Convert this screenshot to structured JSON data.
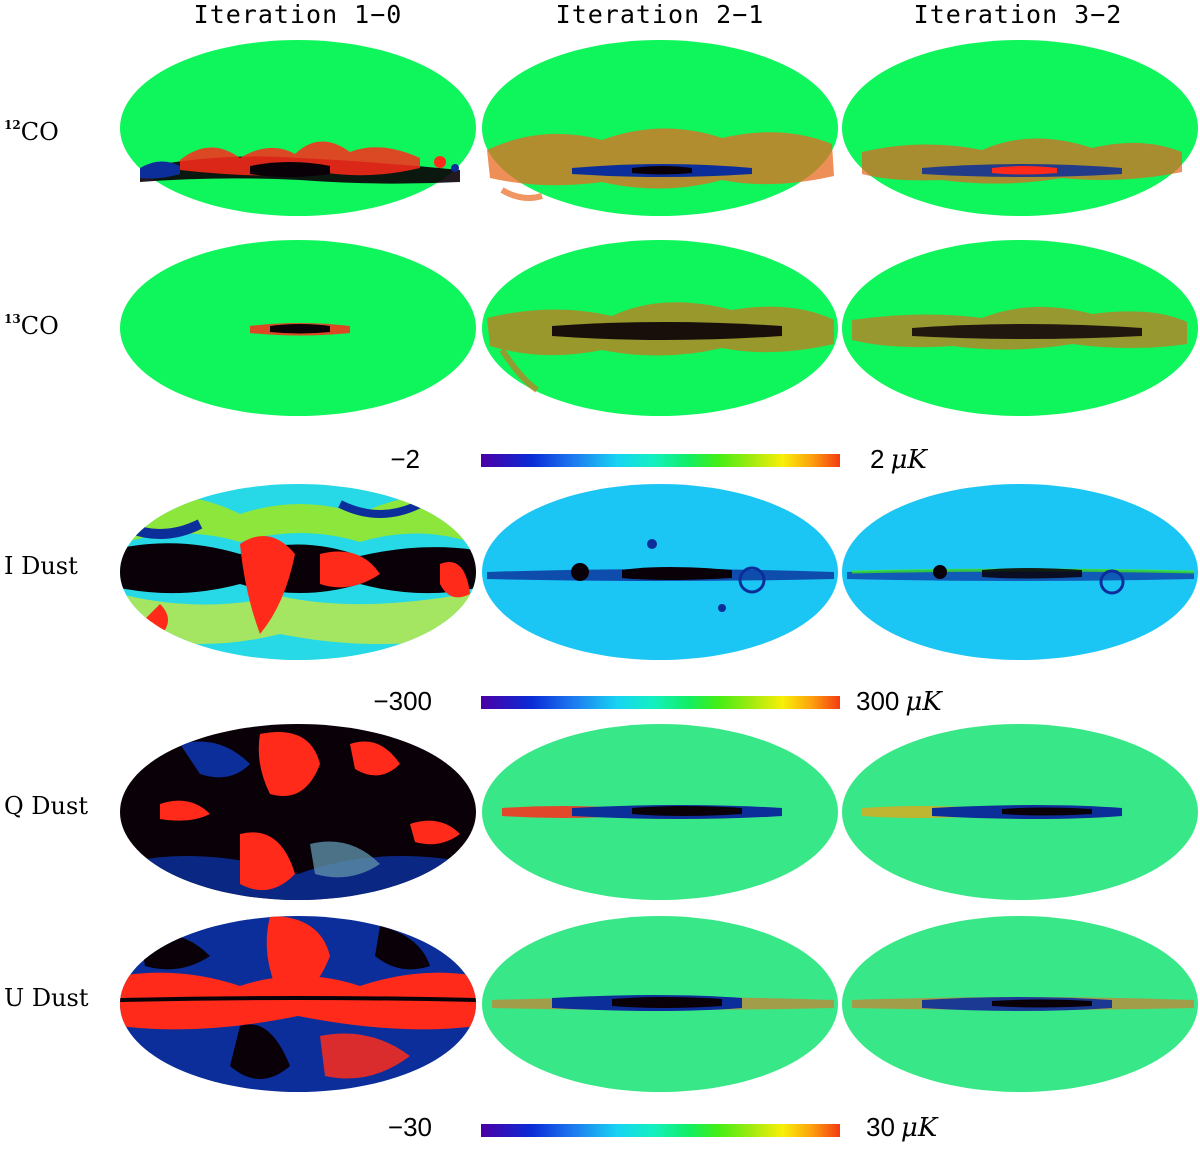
{
  "columns": [
    "Iteration 1−0",
    "Iteration 2−1",
    "Iteration 3−2"
  ],
  "rows": {
    "co12": {
      "sup": "12",
      "base": "CO"
    },
    "co13": {
      "sup": "13",
      "base": "CO"
    },
    "idust": "I Dust",
    "qdust": "Q Dust",
    "udust": "U Dust"
  },
  "colorbars": [
    {
      "min": "−2",
      "max": "2",
      "unit": "μK",
      "applies_to": [
        "12CO",
        "13CO"
      ]
    },
    {
      "min": "−300",
      "max": "300",
      "unit": "μK",
      "applies_to": [
        "I Dust"
      ]
    },
    {
      "min": "−30",
      "max": "30",
      "unit": "μK",
      "applies_to": [
        "Q Dust",
        "U Dust"
      ]
    }
  ],
  "colormap": [
    "#4b00a6",
    "#0a2bd6",
    "#1d7cf0",
    "#17d4f2",
    "#13f0c0",
    "#12ee62",
    "#43ee14",
    "#a8ea10",
    "#f8f008",
    "#fda20d",
    "#f33b12"
  ],
  "map_colors": {
    "green": "#0ff55c",
    "cyan": "#1cc6f4",
    "red": "#ff2a1a",
    "black": "#0a0008",
    "navy": "#0c2e9a"
  }
}
